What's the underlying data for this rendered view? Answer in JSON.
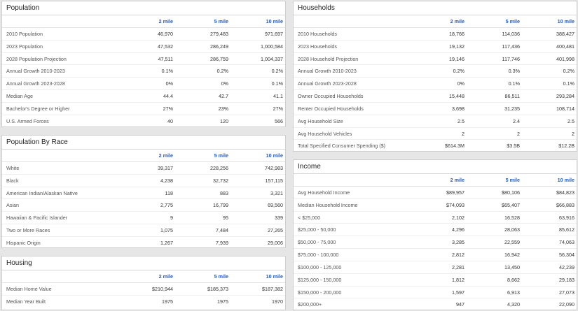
{
  "columns": [
    "2 mile",
    "5 mile",
    "10 mile"
  ],
  "population": {
    "title": "Population",
    "rows": [
      {
        "label": "2010 Population",
        "v": [
          "46,970",
          "279,483",
          "971,697"
        ]
      },
      {
        "label": "2023 Population",
        "v": [
          "47,532",
          "286,249",
          "1,000,584"
        ]
      },
      {
        "label": "2028 Population Projection",
        "v": [
          "47,511",
          "286,759",
          "1,004,337"
        ]
      },
      {
        "label": "Annual Growth 2010-2023",
        "v": [
          "0.1%",
          "0.2%",
          "0.2%"
        ]
      },
      {
        "label": "Annual Growth 2023-2028",
        "v": [
          "0%",
          "0%",
          "0.1%"
        ]
      },
      {
        "label": "Median Age",
        "v": [
          "44.4",
          "42.7",
          "41.1"
        ]
      },
      {
        "label": "Bachelor's Degree or Higher",
        "v": [
          "27%",
          "23%",
          "27%"
        ]
      },
      {
        "label": "U.S. Armed Forces",
        "v": [
          "40",
          "120",
          "566"
        ]
      }
    ]
  },
  "race": {
    "title": "Population By Race",
    "rows": [
      {
        "label": "White",
        "v": [
          "39,317",
          "228,256",
          "742,983"
        ]
      },
      {
        "label": "Black",
        "v": [
          "4,238",
          "32,732",
          "157,115"
        ]
      },
      {
        "label": "American Indian/Alaskan Native",
        "v": [
          "118",
          "883",
          "3,321"
        ]
      },
      {
        "label": "Asian",
        "v": [
          "2,775",
          "16,799",
          "69,560"
        ]
      },
      {
        "label": "Hawaiian & Pacific Islander",
        "v": [
          "9",
          "95",
          "339"
        ]
      },
      {
        "label": "Two or More Races",
        "v": [
          "1,075",
          "7,484",
          "27,265"
        ]
      },
      {
        "label": "Hispanic Origin",
        "v": [
          "1,267",
          "7,939",
          "29,006"
        ]
      }
    ]
  },
  "housing": {
    "title": "Housing",
    "rows": [
      {
        "label": "Median Home Value",
        "v": [
          "$210,944",
          "$185,373",
          "$187,382"
        ]
      },
      {
        "label": "Median Year Built",
        "v": [
          "1975",
          "1975",
          "1970"
        ]
      }
    ]
  },
  "households": {
    "title": "Households",
    "rows": [
      {
        "label": "2010 Households",
        "v": [
          "18,766",
          "114,036",
          "388,427"
        ]
      },
      {
        "label": "2023 Households",
        "v": [
          "19,132",
          "117,436",
          "400,481"
        ]
      },
      {
        "label": "2028 Household Projection",
        "v": [
          "19,146",
          "117,746",
          "401,998"
        ]
      },
      {
        "label": "Annual Growth 2010-2023",
        "v": [
          "0.2%",
          "0.3%",
          "0.2%"
        ]
      },
      {
        "label": "Annual Growth 2023-2028",
        "v": [
          "0%",
          "0.1%",
          "0.1%"
        ]
      },
      {
        "label": "Owner Occupied Households",
        "v": [
          "15,448",
          "86,511",
          "293,284"
        ]
      },
      {
        "label": "Renter Occupied Households",
        "v": [
          "3,698",
          "31,235",
          "108,714"
        ]
      },
      {
        "label": "Avg Household Size",
        "v": [
          "2.5",
          "2.4",
          "2.5"
        ]
      },
      {
        "label": "Avg Household Vehicles",
        "v": [
          "2",
          "2",
          "2"
        ]
      },
      {
        "label": "Total Specified Consumer Spending ($)",
        "v": [
          "$614.3M",
          "$3.5B",
          "$12.2B"
        ]
      }
    ]
  },
  "income": {
    "title": "Income",
    "rows": [
      {
        "label": "Avg Household Income",
        "v": [
          "$89,957",
          "$80,106",
          "$84,823"
        ]
      },
      {
        "label": "Median Household Income",
        "v": [
          "$74,093",
          "$65,407",
          "$66,883"
        ]
      },
      {
        "label": "< $25,000",
        "v": [
          "2,102",
          "16,528",
          "63,916"
        ]
      },
      {
        "label": "$25,000 - 50,000",
        "v": [
          "4,296",
          "28,063",
          "85,612"
        ]
      },
      {
        "label": "$50,000 - 75,000",
        "v": [
          "3,285",
          "22,559",
          "74,063"
        ]
      },
      {
        "label": "$75,000 - 100,000",
        "v": [
          "2,812",
          "16,942",
          "56,304"
        ]
      },
      {
        "label": "$100,000 - 125,000",
        "v": [
          "2,281",
          "13,450",
          "42,239"
        ]
      },
      {
        "label": "$125,000 - 150,000",
        "v": [
          "1,812",
          "8,662",
          "29,183"
        ]
      },
      {
        "label": "$150,000 - 200,000",
        "v": [
          "1,597",
          "6,913",
          "27,073"
        ]
      },
      {
        "label": "$200,000+",
        "v": [
          "947",
          "4,320",
          "22,090"
        ]
      }
    ]
  }
}
